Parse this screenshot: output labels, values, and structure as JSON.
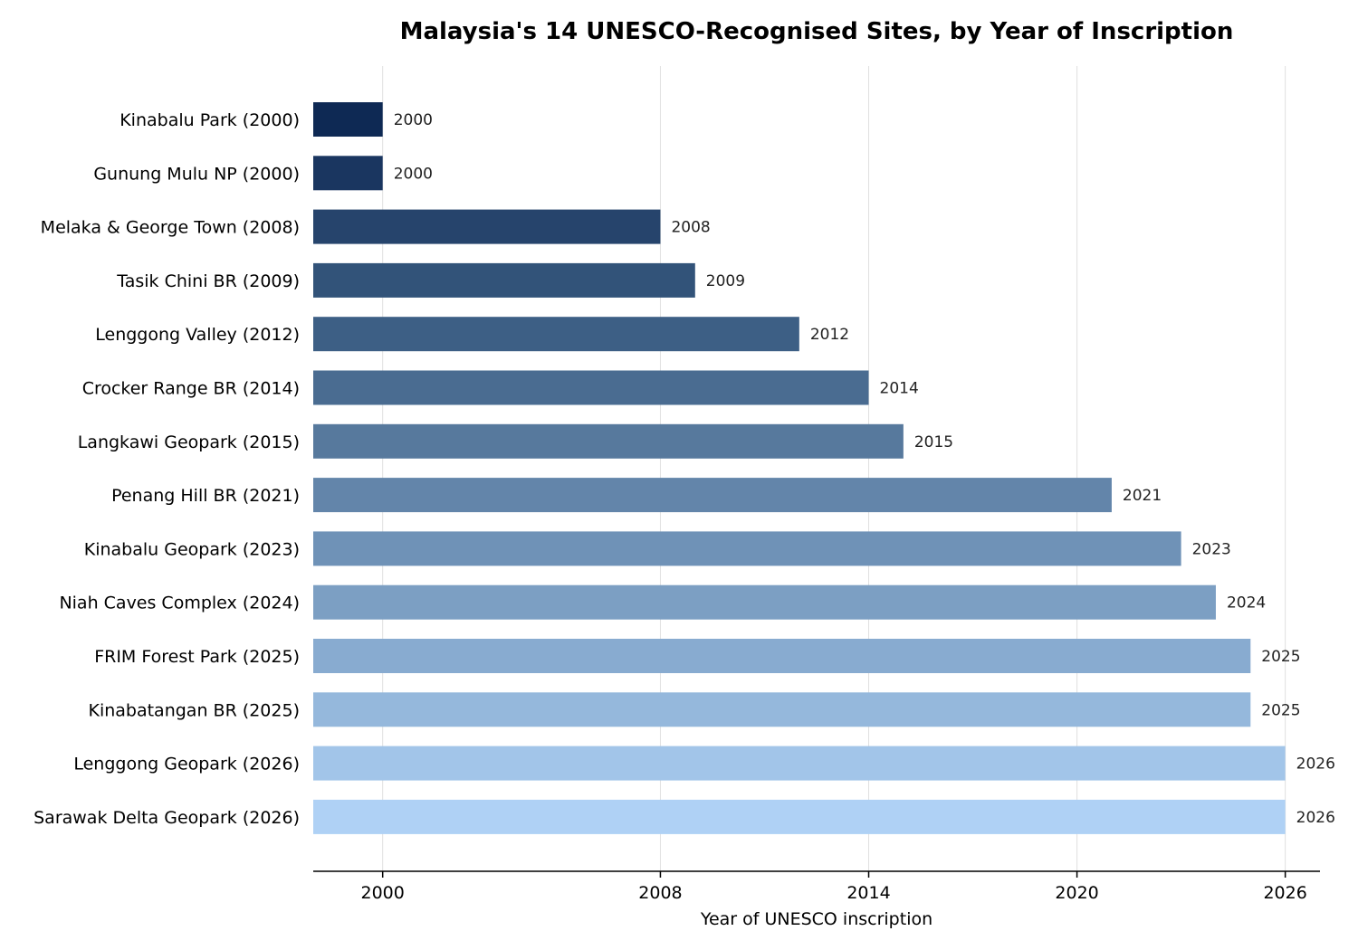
{
  "chart_data": {
    "type": "bar",
    "orientation": "horizontal",
    "title": "Malaysia's 14 UNESCO-Recognised Sites, by Year of Inscription",
    "xlabel": "Year of UNESCO inscription",
    "ylabel": "",
    "xlim": [
      1998,
      2027
    ],
    "xticks": [
      2000,
      2008,
      2014,
      2020,
      2026
    ],
    "grid": "vertical",
    "categories": [
      "Kinabalu Park (2000)",
      "Gunung Mulu NP (2000)",
      "Melaka & George Town (2008)",
      "Tasik Chini BR (2009)",
      "Lenggong Valley (2012)",
      "Crocker Range BR (2014)",
      "Langkawi Geopark (2015)",
      "Penang Hill BR (2021)",
      "Kinabalu Geopark (2023)",
      "Niah Caves Complex (2024)",
      "FRIM Forest Park (2025)",
      "Kinabatangan BR (2025)",
      "Lenggong Geopark (2026)",
      "Sarawak Delta Geopark (2026)"
    ],
    "values": [
      2000,
      2000,
      2008,
      2009,
      2012,
      2014,
      2015,
      2021,
      2023,
      2024,
      2025,
      2025,
      2026,
      2026
    ],
    "value_labels": [
      "2000",
      "2000",
      "2008",
      "2009",
      "2012",
      "2014",
      "2015",
      "2021",
      "2023",
      "2024",
      "2025",
      "2025",
      "2026",
      "2026"
    ],
    "colors": [
      "#0e2954",
      "#1a3660",
      "#26446c",
      "#325379",
      "#3d5f85",
      "#4a6c91",
      "#57799d",
      "#6385aa",
      "#6f92b7",
      "#7c9fc3",
      "#88abd0",
      "#95b8dc",
      "#a2c5e9",
      "#afd1f5"
    ]
  }
}
